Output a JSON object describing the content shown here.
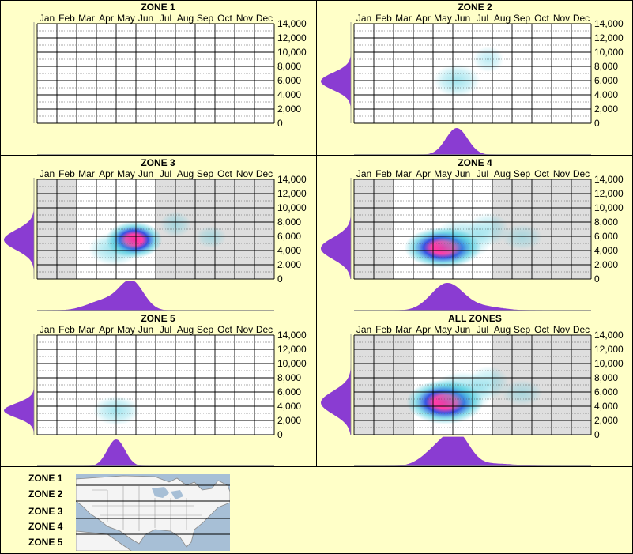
{
  "months": [
    "Jan",
    "Feb",
    "Mar",
    "Apr",
    "May",
    "Jun",
    "Jul",
    "Aug",
    "Sep",
    "Oct",
    "Nov",
    "Dec"
  ],
  "y_ticks": [
    "14,000",
    "12,000",
    "10,000",
    "8,000",
    "6,000",
    "4,000",
    "2,000",
    "0"
  ],
  "colors": {
    "background": "#ffffc8",
    "density_fill": "#8a3cd2",
    "hot": "#ff2aa0",
    "mid": "#2040e0",
    "cool": "#40c8dc",
    "grid_shade": "#dedede"
  },
  "chart_data": [
    {
      "type": "heatmap",
      "title": "ZONE 1",
      "x_axis": "month",
      "y_axis": "elevation",
      "ylim": [
        0,
        14000
      ],
      "observed_months": [],
      "blobs": [],
      "elev_peaks": [],
      "month_peaks": []
    },
    {
      "type": "heatmap",
      "title": "ZONE 2",
      "x_axis": "month",
      "y_axis": "elevation",
      "ylim": [
        0,
        14000
      ],
      "observed_months": [
        "Jan",
        "Feb",
        "Mar",
        "Apr",
        "May",
        "Jun",
        "Jul",
        "Aug",
        "Sep",
        "Oct",
        "Nov",
        "Dec"
      ],
      "blobs": [
        {
          "month": 5.7,
          "elevation": 6000,
          "intensity": 0.35,
          "sx": 0.45,
          "sy": 900
        },
        {
          "month": 7.3,
          "elevation": 9000,
          "intensity": 0.1,
          "sx": 0.3,
          "sy": 700
        }
      ],
      "elev_peaks": [
        {
          "elevation": 5900,
          "sd": 1200,
          "amp": 1.0
        }
      ],
      "month_peaks": [
        {
          "month": 5.7,
          "sd": 0.55,
          "amp": 1.0
        }
      ]
    },
    {
      "type": "heatmap",
      "title": "ZONE 3",
      "x_axis": "month",
      "y_axis": "elevation",
      "ylim": [
        0,
        14000
      ],
      "observed_months": [
        "Mar",
        "Apr",
        "May",
        "Jun"
      ],
      "blobs": [
        {
          "month": 5.4,
          "elevation": 5500,
          "intensity": 1.0,
          "sx": 0.55,
          "sy": 1000
        },
        {
          "month": 4.4,
          "elevation": 4200,
          "intensity": 0.45,
          "sx": 0.5,
          "sy": 900
        },
        {
          "month": 7.5,
          "elevation": 7700,
          "intensity": 0.12,
          "sx": 0.3,
          "sy": 700
        },
        {
          "month": 9.3,
          "elevation": 5900,
          "intensity": 0.08,
          "sx": 0.3,
          "sy": 600
        }
      ],
      "elev_peaks": [
        {
          "elevation": 5500,
          "sd": 1400,
          "amp": 1.0
        }
      ],
      "month_peaks": [
        {
          "month": 5.3,
          "sd": 0.6,
          "amp": 1.0
        },
        {
          "month": 4.0,
          "sd": 0.9,
          "amp": 0.4
        }
      ]
    },
    {
      "type": "heatmap",
      "title": "ZONE 4",
      "x_axis": "month",
      "y_axis": "elevation",
      "ylim": [
        0,
        14000
      ],
      "observed_months": [
        "Mar",
        "Apr",
        "May",
        "Jun",
        "Jul"
      ],
      "blobs": [
        {
          "month": 5.0,
          "elevation": 4400,
          "intensity": 1.0,
          "sx": 0.75,
          "sy": 1100
        },
        {
          "month": 6.0,
          "elevation": 5600,
          "intensity": 0.45,
          "sx": 0.6,
          "sy": 1100
        },
        {
          "month": 7.3,
          "elevation": 7000,
          "intensity": 0.15,
          "sx": 0.4,
          "sy": 900
        },
        {
          "month": 9.0,
          "elevation": 5900,
          "intensity": 0.08,
          "sx": 0.4,
          "sy": 700
        }
      ],
      "elev_peaks": [
        {
          "elevation": 4300,
          "sd": 1500,
          "amp": 1.0
        }
      ],
      "month_peaks": [
        {
          "month": 5.2,
          "sd": 0.8,
          "amp": 1.0
        },
        {
          "month": 7.0,
          "sd": 1.0,
          "amp": 0.15
        }
      ]
    },
    {
      "type": "heatmap",
      "title": "ZONE 5",
      "x_axis": "month",
      "y_axis": "elevation",
      "ylim": [
        0,
        14000
      ],
      "observed_months": [
        "Jan",
        "Feb",
        "Mar",
        "Apr",
        "May",
        "Jun",
        "Jul",
        "Aug",
        "Sep",
        "Oct",
        "Nov",
        "Dec"
      ],
      "blobs": [
        {
          "month": 4.5,
          "elevation": 3400,
          "intensity": 0.35,
          "sx": 0.45,
          "sy": 800
        }
      ],
      "elev_peaks": [
        {
          "elevation": 3400,
          "sd": 1000,
          "amp": 1.0
        }
      ],
      "month_peaks": [
        {
          "month": 4.5,
          "sd": 0.45,
          "amp": 1.0
        }
      ]
    },
    {
      "type": "heatmap",
      "title": "ALL ZONES",
      "x_axis": "month",
      "y_axis": "elevation",
      "ylim": [
        0,
        14000
      ],
      "observed_months": [
        "Apr",
        "May",
        "Jun",
        "Jul"
      ],
      "blobs": [
        {
          "month": 5.1,
          "elevation": 4600,
          "intensity": 1.0,
          "sx": 0.75,
          "sy": 1200
        },
        {
          "month": 6.0,
          "elevation": 6000,
          "intensity": 0.5,
          "sx": 0.6,
          "sy": 1100
        },
        {
          "month": 7.3,
          "elevation": 7300,
          "intensity": 0.18,
          "sx": 0.4,
          "sy": 900
        },
        {
          "month": 9.0,
          "elevation": 5900,
          "intensity": 0.08,
          "sx": 0.4,
          "sy": 700
        }
      ],
      "elev_peaks": [
        {
          "elevation": 4500,
          "sd": 1600,
          "amp": 1.0
        }
      ],
      "month_peaks": [
        {
          "month": 4.9,
          "sd": 0.8,
          "amp": 0.75
        },
        {
          "month": 5.8,
          "sd": 0.6,
          "amp": 0.85
        },
        {
          "month": 7.5,
          "sd": 1.2,
          "amp": 0.1
        }
      ]
    }
  ],
  "legend": {
    "zones": [
      "ZONE 1",
      "ZONE 2",
      "ZONE 3",
      "ZONE 4",
      "ZONE 5"
    ],
    "map_icon": "north-america-map-icon"
  }
}
